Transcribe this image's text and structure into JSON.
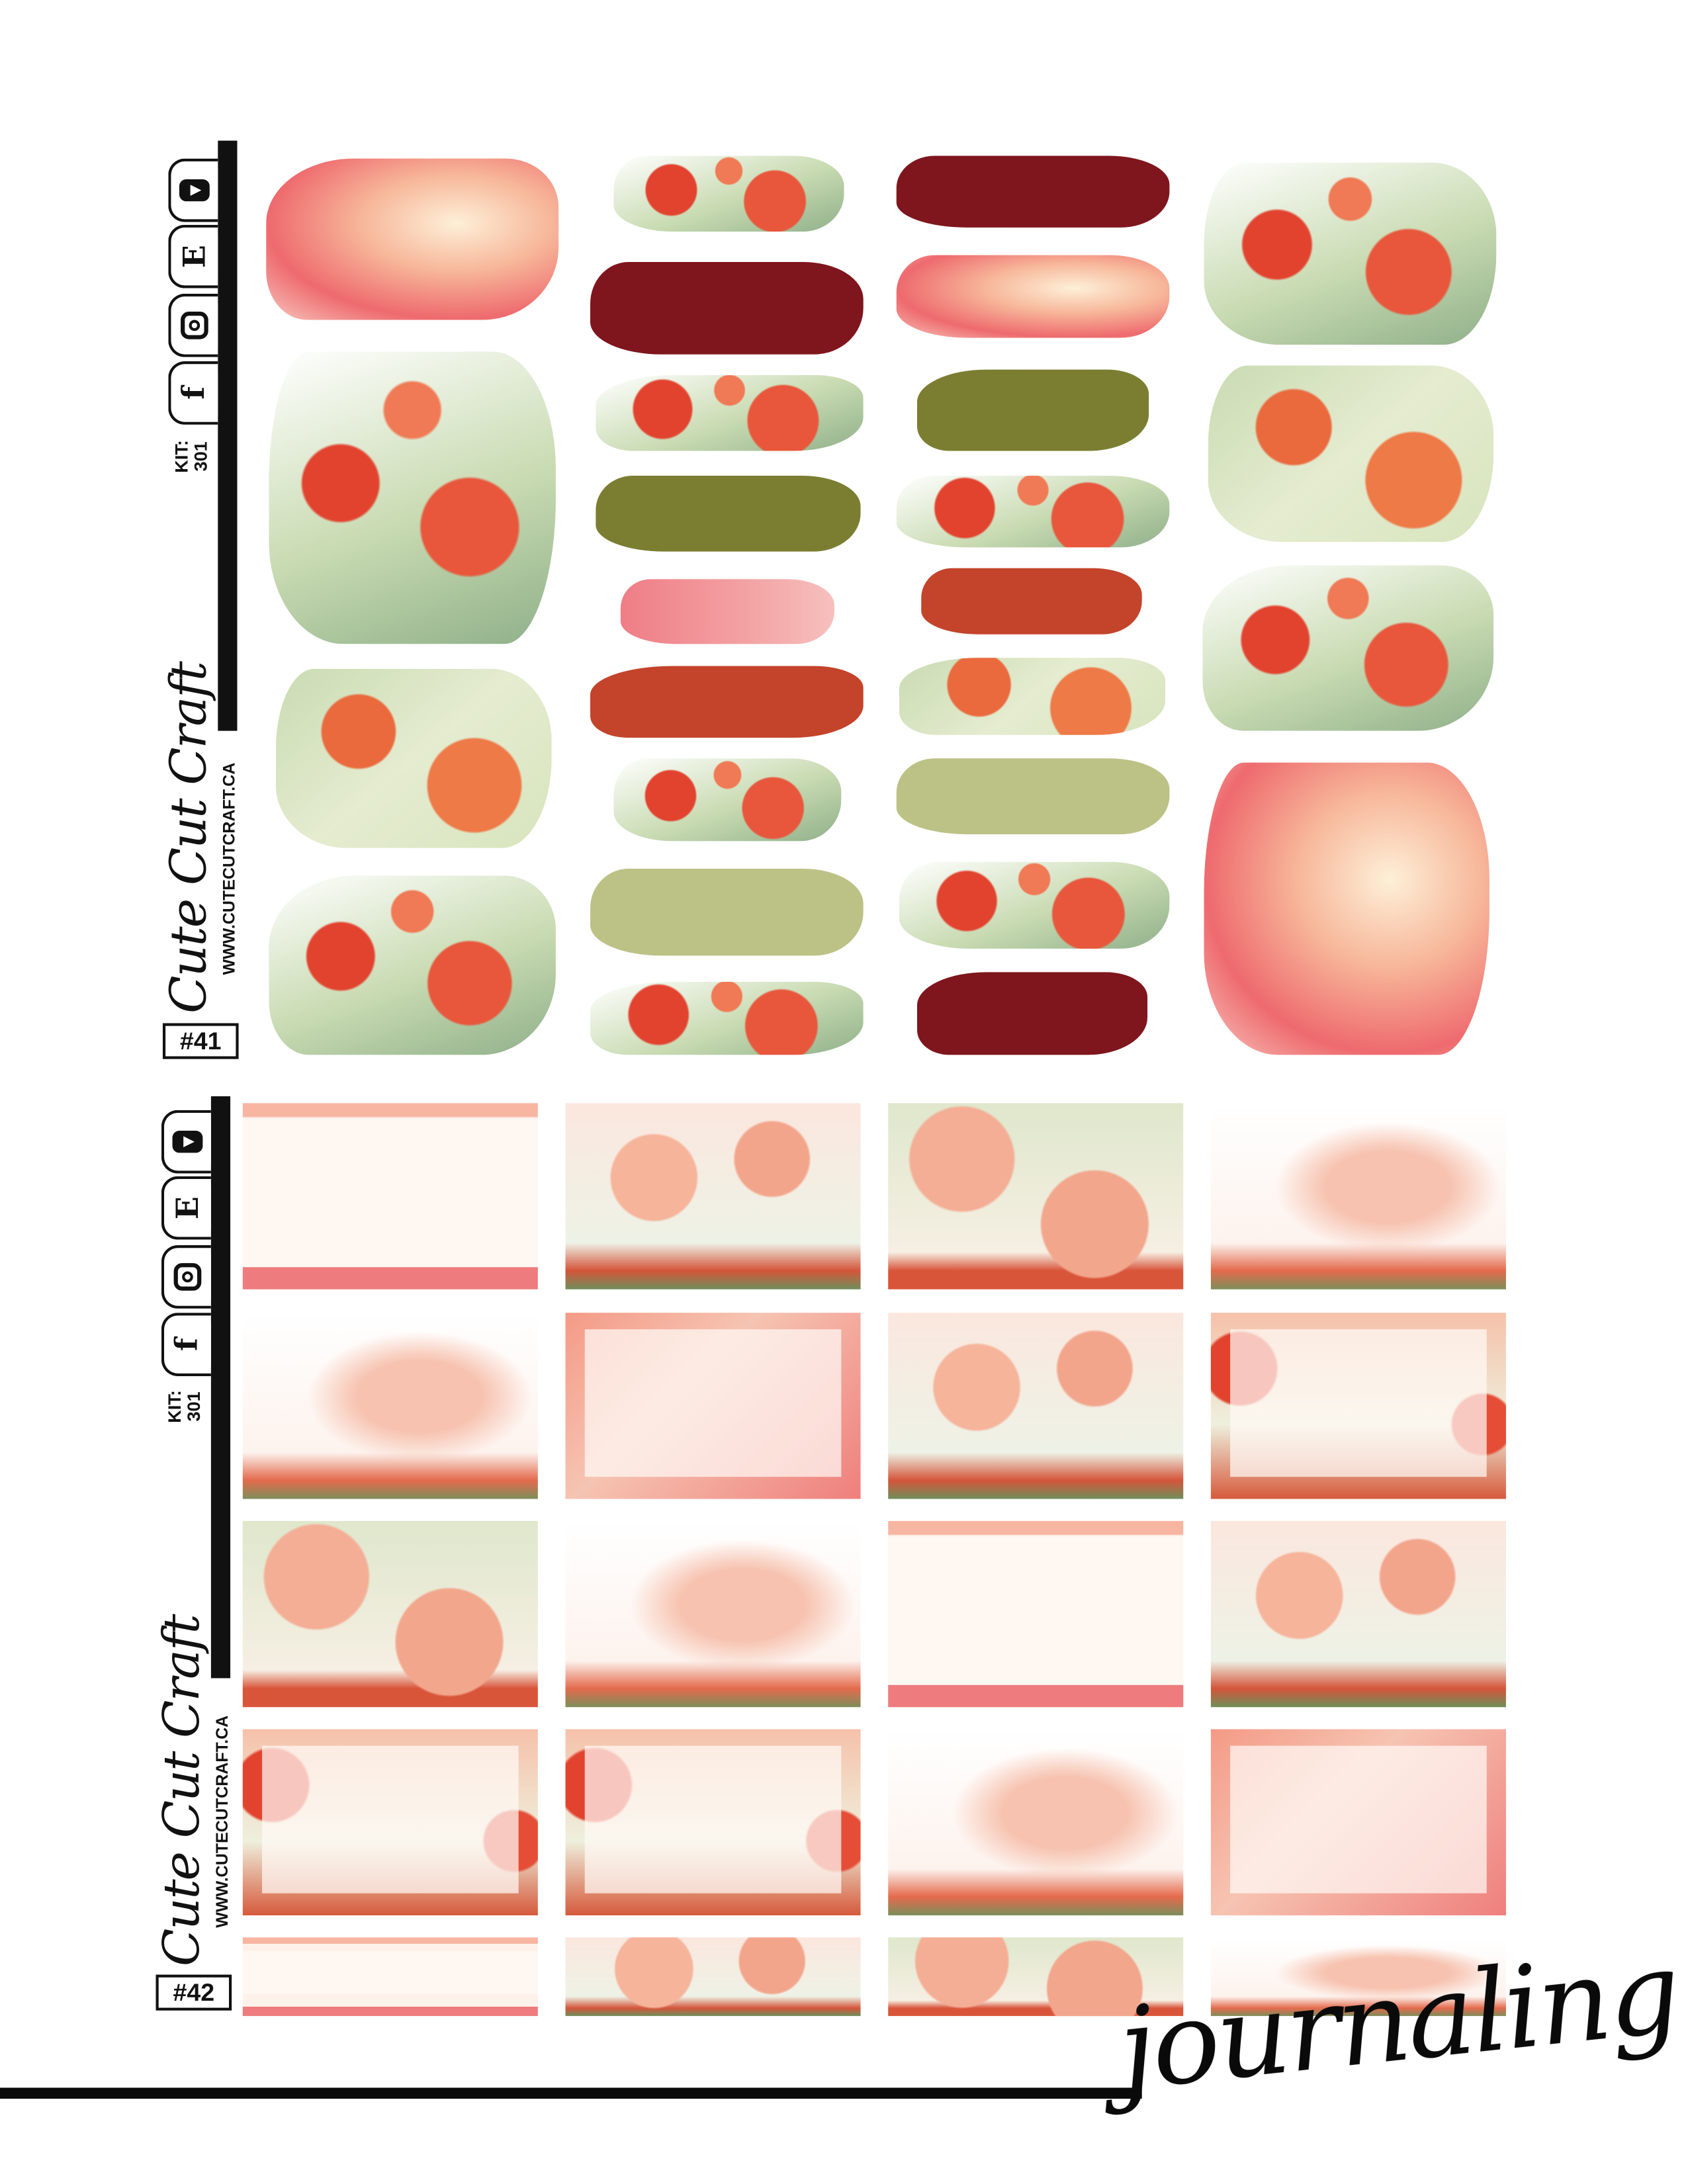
{
  "colors": {
    "burgundy": "#7f151d",
    "olive": "#7b7e31",
    "rust": "#c3442b",
    "sage": "#bcc286",
    "pink_wash": "#ee6a6e",
    "cream": "#fdf0d8",
    "poppy_red": "#e2432f",
    "leaf_green": "#c9dbb2"
  },
  "sections": [
    {
      "kit_label": "KIT:",
      "kit_number": "301",
      "brand": "Cute Cut Craft",
      "website": "WWW.CUTECUTCRAFT.CA",
      "sheet_number": "#41",
      "social_icons": [
        "youtube-icon",
        "etsy-icon",
        "instagram-icon",
        "facebook-icon"
      ],
      "etsy_glyph": "E",
      "facebook_glyph": "f"
    },
    {
      "kit_label": "KIT:",
      "kit_number": "301",
      "brand": "Cute Cut Craft",
      "website": "WWW.CUTECUTCRAFT.CA",
      "sheet_number": "#42",
      "social_icons": [
        "youtube-icon",
        "etsy-icon",
        "instagram-icon",
        "facebook-icon"
      ],
      "etsy_glyph": "E",
      "facebook_glyph": "f"
    }
  ],
  "footer": {
    "title": "journaling kit"
  }
}
